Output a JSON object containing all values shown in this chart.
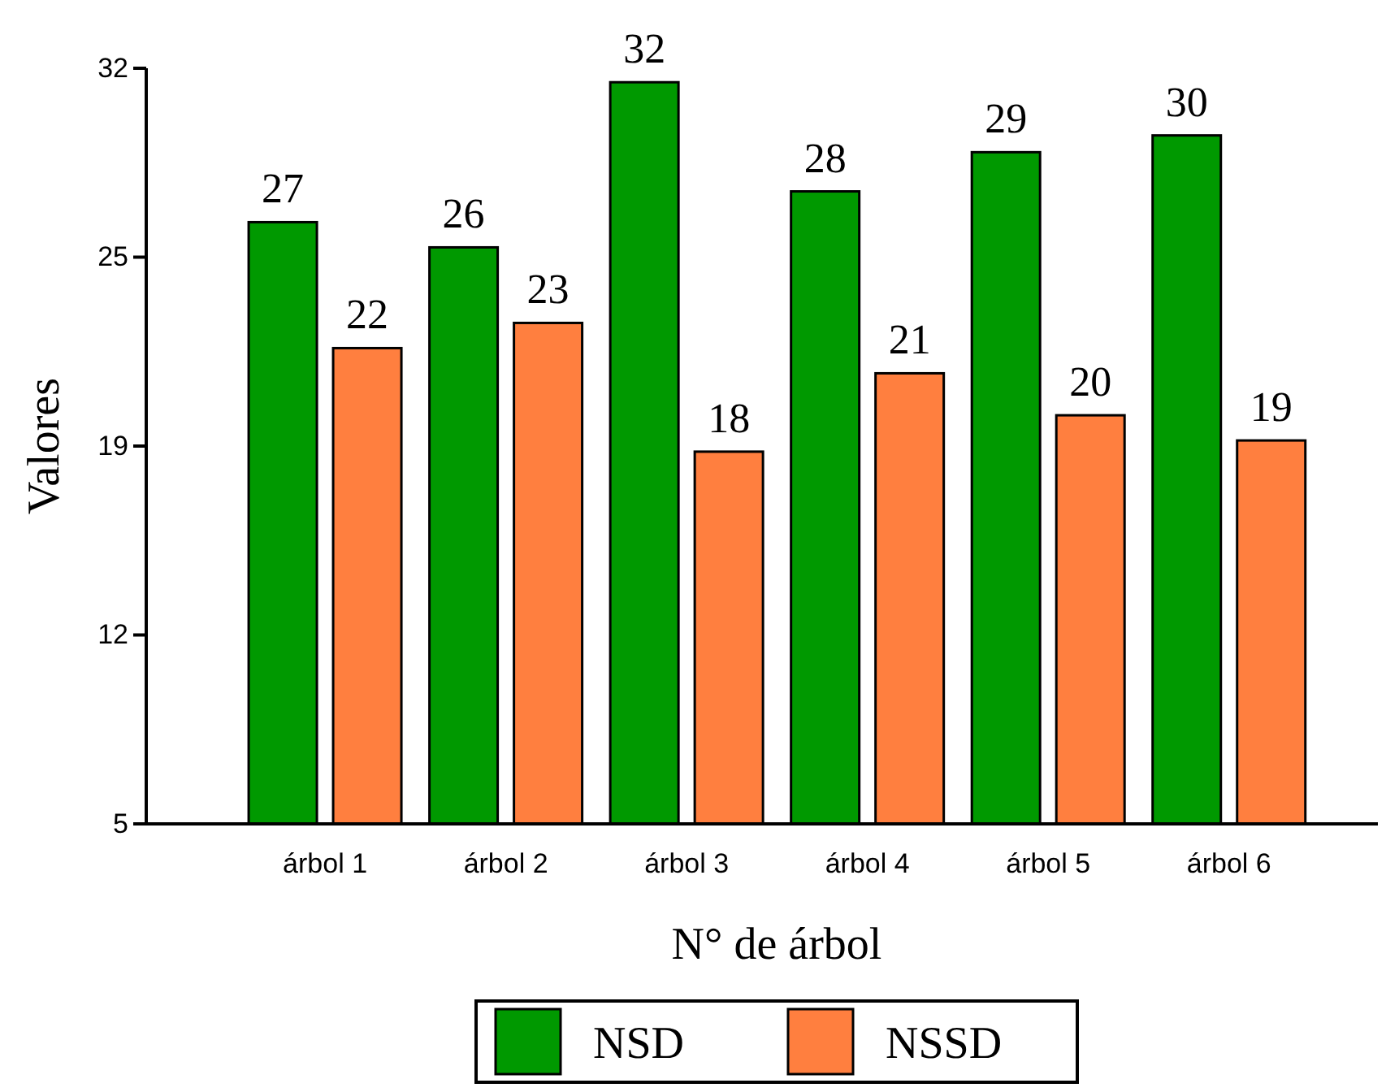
{
  "chart_data": {
    "type": "bar",
    "xlabel": "N° de árbol",
    "ylabel": "Valores",
    "categories": [
      "árbol 1",
      "árbol 2",
      "árbol 3",
      "árbol 4",
      "árbol 5",
      "árbol 6"
    ],
    "series": [
      {
        "name": "NSD",
        "color": "#009900",
        "values": [
          26.5,
          25.6,
          31.5,
          27.6,
          29.0,
          29.6
        ],
        "value_labels": [
          "27",
          "26",
          "32",
          "28",
          "29",
          "30"
        ]
      },
      {
        "name": "NSSD",
        "color": "#ff7f3f",
        "values": [
          22.0,
          22.9,
          18.3,
          21.1,
          19.6,
          18.7
        ],
        "value_labels": [
          "22",
          "23",
          "18",
          "21",
          "20",
          "19"
        ]
      }
    ],
    "ylim": [
      5,
      32
    ],
    "yticks": [
      5,
      {
        "value": 11.75,
        "label": "12"
      },
      {
        "value": 18.5,
        "label": "19"
      },
      {
        "value": 25.25,
        "label": "25"
      },
      32
    ],
    "grid": false,
    "legend": "bottom"
  }
}
